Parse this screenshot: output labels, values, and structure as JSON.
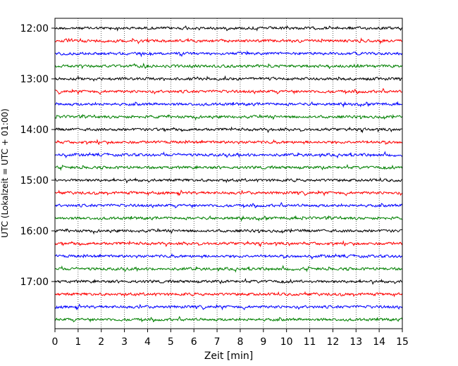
{
  "chart_data": {
    "type": "line",
    "xlabel": "Zeit  [min]",
    "ylabel": "UTC (Lokalzeit = UTC + 01:00)",
    "xlim": [
      0,
      15
    ],
    "x_ticks": [
      0,
      1,
      2,
      3,
      4,
      5,
      6,
      7,
      8,
      9,
      10,
      11,
      12,
      13,
      14,
      15
    ],
    "x_tick_labels": [
      "0",
      "1",
      "2",
      "3",
      "4",
      "5",
      "6",
      "7",
      "8",
      "9",
      "10",
      "11",
      "12",
      "13",
      "14",
      "15"
    ],
    "y_ticks": [
      {
        "label": "12:00",
        "trace_index": 0
      },
      {
        "label": "13:00",
        "trace_index": 4
      },
      {
        "label": "14:00",
        "trace_index": 8
      },
      {
        "label": "15:00",
        "trace_index": 12
      },
      {
        "label": "16:00",
        "trace_index": 16
      },
      {
        "label": "17:00",
        "trace_index": 20
      }
    ],
    "grid": {
      "x": true,
      "y": false,
      "style": "dotted"
    },
    "trace_colors": [
      "#000000",
      "#ff0000",
      "#0000ff",
      "#008000"
    ],
    "trace_count": 24,
    "trace_interval_min": 15,
    "series": [
      {
        "start": "12:00",
        "color": "#000000"
      },
      {
        "start": "12:15",
        "color": "#ff0000"
      },
      {
        "start": "12:30",
        "color": "#0000ff"
      },
      {
        "start": "12:45",
        "color": "#008000"
      },
      {
        "start": "13:00",
        "color": "#000000"
      },
      {
        "start": "13:15",
        "color": "#ff0000"
      },
      {
        "start": "13:30",
        "color": "#0000ff"
      },
      {
        "start": "13:45",
        "color": "#008000"
      },
      {
        "start": "14:00",
        "color": "#000000"
      },
      {
        "start": "14:15",
        "color": "#ff0000"
      },
      {
        "start": "14:30",
        "color": "#0000ff"
      },
      {
        "start": "14:45",
        "color": "#008000"
      },
      {
        "start": "15:00",
        "color": "#000000"
      },
      {
        "start": "15:15",
        "color": "#ff0000"
      },
      {
        "start": "15:30",
        "color": "#0000ff"
      },
      {
        "start": "15:45",
        "color": "#008000"
      },
      {
        "start": "16:00",
        "color": "#000000"
      },
      {
        "start": "16:15",
        "color": "#ff0000"
      },
      {
        "start": "16:30",
        "color": "#0000ff"
      },
      {
        "start": "16:45",
        "color": "#008000"
      },
      {
        "start": "17:00",
        "color": "#000000"
      },
      {
        "start": "17:15",
        "color": "#ff0000"
      },
      {
        "start": "17:30",
        "color": "#0000ff"
      },
      {
        "start": "17:45",
        "color": "#008000"
      }
    ]
  }
}
